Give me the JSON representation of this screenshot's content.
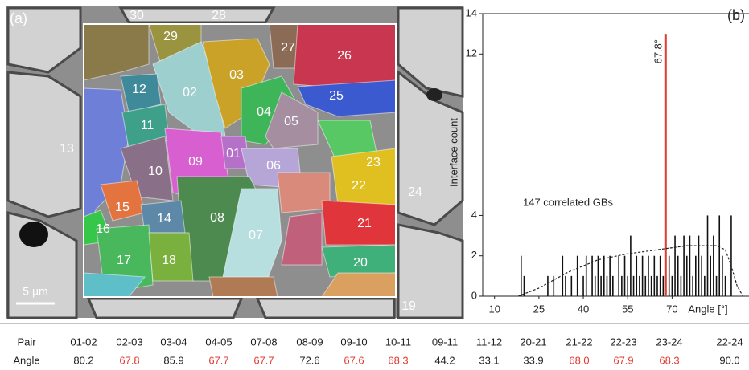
{
  "micrograph": {
    "panel_label": "(a)",
    "grains": [
      "30",
      "28",
      "29",
      "27",
      "26",
      "03",
      "02",
      "12",
      "25",
      "04",
      "05",
      "11",
      "13",
      "01",
      "09",
      "10",
      "06",
      "23",
      "22",
      "24",
      "15",
      "08",
      "21",
      "14",
      "16",
      "07",
      "17",
      "18",
      "20",
      "19"
    ],
    "scale_bar": "5 µm"
  },
  "chart_data": {
    "type": "bar",
    "panel_label": "(b)",
    "x_label": "Angle [°]",
    "y_label": "Interface count",
    "annotations": [
      "147 correlated GBs",
      "67.8°"
    ],
    "xlim": [
      6,
      96
    ],
    "xticks": [
      10,
      25,
      40,
      55,
      70
    ],
    "ylim": [
      0,
      14
    ],
    "yticks": [
      0,
      2,
      4,
      12,
      14
    ],
    "series": [
      {
        "color": "#111111",
        "x": [
          19,
          20,
          28,
          30,
          33,
          34,
          36,
          38,
          40,
          41,
          43,
          44,
          45,
          46,
          47,
          48,
          49,
          50,
          52,
          53,
          54,
          55,
          56,
          57,
          58,
          59,
          60,
          61,
          62,
          63,
          64,
          65,
          66,
          67,
          69,
          70,
          71,
          72,
          73,
          74,
          75,
          76,
          77,
          78,
          79,
          80,
          81,
          82,
          83,
          84,
          85,
          86,
          87,
          88,
          90
        ],
        "values": [
          2,
          1,
          1,
          1,
          2,
          1,
          1,
          2,
          1,
          2,
          2,
          1,
          2,
          1,
          2,
          1,
          2,
          1,
          2,
          1,
          2,
          1,
          3,
          1,
          2,
          1,
          2,
          1,
          2,
          1,
          2,
          1,
          2,
          1,
          2,
          1,
          3,
          2,
          1,
          3,
          2,
          3,
          1,
          2,
          3,
          2,
          1,
          4,
          2,
          3,
          1,
          4,
          2,
          1,
          4
        ]
      },
      {
        "color": "#e03c31",
        "x": [
          67.8
        ],
        "values": [
          13
        ]
      },
      {
        "type": "line",
        "color": "#222222",
        "x": [
          18,
          25,
          35,
          45,
          55,
          65,
          75,
          85,
          88,
          90,
          92,
          94
        ],
        "values": [
          0,
          0.4,
          1.2,
          1.8,
          2.1,
          2.3,
          2.5,
          2.5,
          2.3,
          1.5,
          0.5,
          0
        ]
      }
    ]
  },
  "table": {
    "headers": [
      "Pair",
      "Angle"
    ],
    "pairs": [
      "01-02",
      "02-03",
      "03-04",
      "04-05",
      "07-08",
      "08-09",
      "09-10",
      "10-11",
      "09-11",
      "11-12",
      "20-21",
      "21-22",
      "22-23",
      "23-24",
      "22-24"
    ],
    "angles": [
      "80.2",
      "67.8",
      "85.9",
      "67.7",
      "67.7",
      "72.6",
      "67.6",
      "68.3",
      "44.2",
      "33.1",
      "33.9",
      "68.0",
      "67.9",
      "68.3",
      "90.0"
    ],
    "colors": [
      "#222222",
      "#e03c31",
      "#222222",
      "#e03c31",
      "#e03c31",
      "#222222",
      "#e03c31",
      "#e03c31",
      "#222222",
      "#222222",
      "#222222",
      "#e03c31",
      "#e03c31",
      "#e03c31",
      "#222222"
    ]
  }
}
